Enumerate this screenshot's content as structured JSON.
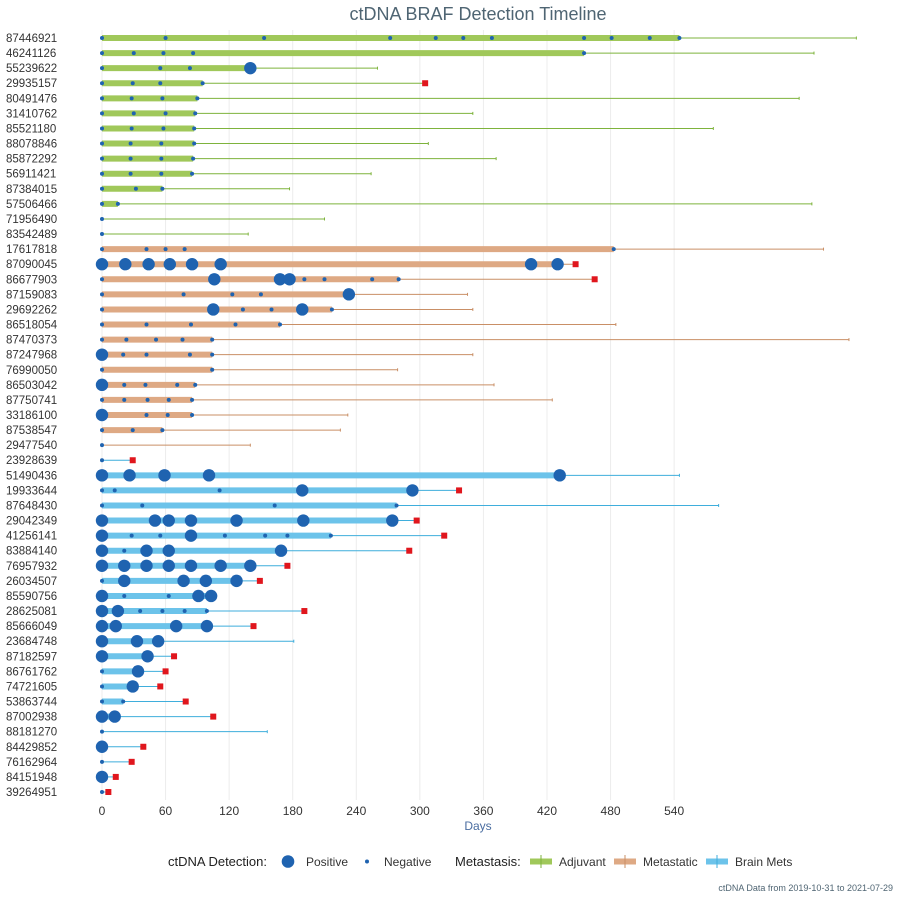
{
  "chart_data": {
    "type": "timeline",
    "title": "ctDNA BRAF Detection Timeline",
    "xlabel": "Days",
    "xlim": [
      -5,
      720
    ],
    "xticks": [
      0,
      60,
      120,
      180,
      240,
      300,
      360,
      420,
      480,
      540
    ],
    "caption": "ctDNA Data from 2019-10-31 to 2021-07-29",
    "legend": {
      "placement": "bottom",
      "detection_title": "ctDNA Detection:",
      "positive_label": "Positive",
      "negative_label": "Negative",
      "metastasis_title": "Metastasis:",
      "groups": [
        {
          "key": "adjuvant",
          "label": "Adjuvant",
          "color": "#a0c85a",
          "thin_color": "#7eb33c"
        },
        {
          "key": "metastatic",
          "label": "Metastatic",
          "color": "#dea984",
          "thin_color": "#c98f66"
        },
        {
          "key": "brain",
          "label": "Brain Mets",
          "color": "#6cc3ea",
          "thin_color": "#3faedc"
        }
      ]
    },
    "colors": {
      "positive": "#1f63b0",
      "negative": "#1f63b0",
      "event": "#e0161d",
      "title": "#4f6573"
    },
    "patients": [
      {
        "id": "87446921",
        "group": "adjuvant",
        "thick_end": 545,
        "thin_end": 712,
        "pos": [],
        "neg": [
          0,
          60,
          153,
          272,
          315,
          341,
          368,
          455,
          481,
          517,
          545
        ]
      },
      {
        "id": "46241126",
        "group": "adjuvant",
        "thick_end": 455,
        "thin_end": 672,
        "pos": [],
        "neg": [
          0,
          30,
          58,
          86,
          455
        ]
      },
      {
        "id": "55239622",
        "group": "adjuvant",
        "thick_end": 140,
        "thin_end": 260,
        "pos": [
          140
        ],
        "neg": [
          0,
          55,
          83
        ]
      },
      {
        "id": "29935157",
        "group": "adjuvant",
        "thick_end": 95,
        "thin_end": 305,
        "pos": [],
        "neg": [
          0,
          29,
          55,
          95
        ],
        "event": 305
      },
      {
        "id": "80491476",
        "group": "adjuvant",
        "thick_end": 90,
        "thin_end": 658,
        "pos": [],
        "neg": [
          0,
          28,
          57,
          90
        ]
      },
      {
        "id": "31410762",
        "group": "adjuvant",
        "thick_end": 88,
        "thin_end": 350,
        "pos": [],
        "neg": [
          0,
          30,
          60,
          88
        ]
      },
      {
        "id": "85521180",
        "group": "adjuvant",
        "thick_end": 87,
        "thin_end": 577,
        "pos": [],
        "neg": [
          0,
          28,
          58,
          87
        ]
      },
      {
        "id": "88078846",
        "group": "adjuvant",
        "thick_end": 87,
        "thin_end": 308,
        "pos": [],
        "neg": [
          0,
          27,
          56,
          87
        ]
      },
      {
        "id": "85872292",
        "group": "adjuvant",
        "thick_end": 86,
        "thin_end": 372,
        "pos": [],
        "neg": [
          0,
          27,
          56,
          86
        ]
      },
      {
        "id": "56911421",
        "group": "adjuvant",
        "thick_end": 85,
        "thin_end": 254,
        "pos": [],
        "neg": [
          0,
          27,
          56,
          85
        ]
      },
      {
        "id": "87384015",
        "group": "adjuvant",
        "thick_end": 57,
        "thin_end": 177,
        "pos": [],
        "neg": [
          0,
          32,
          57
        ]
      },
      {
        "id": "57506466",
        "group": "adjuvant",
        "thick_end": 15,
        "thin_end": 670,
        "pos": [],
        "neg": [
          0,
          15
        ]
      },
      {
        "id": "71956490",
        "group": "adjuvant",
        "thick_end": 0,
        "thin_end": 210,
        "pos": [],
        "neg": [
          0
        ]
      },
      {
        "id": "83542489",
        "group": "adjuvant",
        "thick_end": 0,
        "thin_end": 138,
        "pos": [],
        "neg": [
          0
        ]
      },
      {
        "id": "17617818",
        "group": "metastatic",
        "thick_end": 483,
        "thin_end": 681,
        "pos": [],
        "neg": [
          0,
          42,
          60,
          78,
          483
        ]
      },
      {
        "id": "87090045",
        "group": "metastatic",
        "thick_end": 430,
        "thin_end": 447,
        "pos": [
          0,
          22,
          44,
          64,
          85,
          112,
          405,
          430
        ],
        "neg": [],
        "event": 447
      },
      {
        "id": "86677903",
        "group": "metastatic",
        "thick_end": 280,
        "thin_end": 465,
        "pos": [
          106,
          168,
          177
        ],
        "neg": [
          0,
          191,
          210,
          255,
          280
        ],
        "event": 465
      },
      {
        "id": "87159083",
        "group": "metastatic",
        "thick_end": 233,
        "thin_end": 345,
        "pos": [
          233
        ],
        "neg": [
          0,
          77,
          123,
          150
        ]
      },
      {
        "id": "29692262",
        "group": "metastatic",
        "thick_end": 217,
        "thin_end": 350,
        "pos": [
          105,
          189
        ],
        "neg": [
          0,
          133,
          160,
          217
        ]
      },
      {
        "id": "86518054",
        "group": "metastatic",
        "thick_end": 168,
        "thin_end": 485,
        "pos": [],
        "neg": [
          0,
          42,
          84,
          126,
          168
        ]
      },
      {
        "id": "87470373",
        "group": "metastatic",
        "thick_end": 104,
        "thin_end": 705,
        "pos": [],
        "neg": [
          0,
          23,
          51,
          76,
          104
        ]
      },
      {
        "id": "87247968",
        "group": "metastatic",
        "thick_end": 104,
        "thin_end": 350,
        "pos": [
          0
        ],
        "neg": [
          20,
          42,
          83,
          104
        ]
      },
      {
        "id": "76990050",
        "group": "metastatic",
        "thick_end": 104,
        "thin_end": 279,
        "pos": [],
        "neg": [
          0,
          104
        ]
      },
      {
        "id": "86503042",
        "group": "metastatic",
        "thick_end": 88,
        "thin_end": 370,
        "pos": [
          0
        ],
        "neg": [
          21,
          41,
          71,
          88
        ]
      },
      {
        "id": "87750741",
        "group": "metastatic",
        "thick_end": 85,
        "thin_end": 425,
        "pos": [],
        "neg": [
          0,
          21,
          43,
          63,
          85
        ]
      },
      {
        "id": "33186100",
        "group": "metastatic",
        "thick_end": 85,
        "thin_end": 232,
        "pos": [
          0
        ],
        "neg": [
          42,
          62,
          85
        ]
      },
      {
        "id": "87538547",
        "group": "metastatic",
        "thick_end": 57,
        "thin_end": 225,
        "pos": [],
        "neg": [
          0,
          29,
          57
        ]
      },
      {
        "id": "29477540",
        "group": "metastatic",
        "thick_end": 0,
        "thin_end": 140,
        "pos": [],
        "neg": [
          0
        ]
      },
      {
        "id": "23928639",
        "group": "brain",
        "thick_end": 0,
        "thin_end": 29,
        "pos": [],
        "neg": [
          0
        ],
        "event": 29
      },
      {
        "id": "51490436",
        "group": "brain",
        "thick_end": 432,
        "thin_end": 545,
        "pos": [
          0,
          26,
          59,
          101,
          432
        ],
        "neg": []
      },
      {
        "id": "19933644",
        "group": "brain",
        "thick_end": 293,
        "thin_end": 337,
        "pos": [
          189,
          293
        ],
        "neg": [
          0,
          12,
          111
        ],
        "event": 337
      },
      {
        "id": "87648430",
        "group": "brain",
        "thick_end": 278,
        "thin_end": 582,
        "pos": [],
        "neg": [
          0,
          38,
          163,
          278
        ]
      },
      {
        "id": "29042349",
        "group": "brain",
        "thick_end": 278,
        "thin_end": 297,
        "pos": [
          0,
          50,
          63,
          84,
          127,
          190,
          274
        ],
        "neg": [],
        "event": 297
      },
      {
        "id": "41256141",
        "group": "brain",
        "thick_end": 216,
        "thin_end": 323,
        "pos": [
          0,
          84
        ],
        "neg": [
          28,
          55,
          116,
          154,
          175,
          216
        ],
        "event": 323
      },
      {
        "id": "83884140",
        "group": "brain",
        "thick_end": 169,
        "thin_end": 290,
        "pos": [
          0,
          42,
          63,
          169
        ],
        "neg": [
          21
        ],
        "event": 290
      },
      {
        "id": "76957932",
        "group": "brain",
        "thick_end": 140,
        "thin_end": 175,
        "pos": [
          0,
          21,
          42,
          63,
          84,
          112,
          140
        ],
        "neg": [],
        "event": 175
      },
      {
        "id": "26034507",
        "group": "brain",
        "thick_end": 127,
        "thin_end": 149,
        "pos": [
          21,
          77,
          98,
          127
        ],
        "neg": [
          0
        ],
        "event": 149
      },
      {
        "id": "85590756",
        "group": "brain",
        "thick_end": 105,
        "thin_end": 105,
        "pos": [
          0,
          91,
          103
        ],
        "neg": [
          21,
          63
        ],
        "event": 105
      },
      {
        "id": "28625081",
        "group": "brain",
        "thick_end": 99,
        "thin_end": 191,
        "pos": [
          0,
          15
        ],
        "neg": [
          36,
          57,
          78,
          99
        ],
        "event": 191
      },
      {
        "id": "85666049",
        "group": "brain",
        "thick_end": 99,
        "thin_end": 143,
        "pos": [
          0,
          13,
          70,
          99
        ],
        "neg": [],
        "event": 143
      },
      {
        "id": "23684748",
        "group": "brain",
        "thick_end": 53,
        "thin_end": 181,
        "pos": [
          0,
          33,
          53
        ],
        "neg": []
      },
      {
        "id": "87182597",
        "group": "brain",
        "thick_end": 43,
        "thin_end": 68,
        "pos": [
          0,
          43
        ],
        "neg": [],
        "event": 68
      },
      {
        "id": "86761762",
        "group": "brain",
        "thick_end": 34,
        "thin_end": 60,
        "pos": [
          34
        ],
        "neg": [
          0
        ],
        "event": 60
      },
      {
        "id": "74721605",
        "group": "brain",
        "thick_end": 29,
        "thin_end": 55,
        "pos": [
          29
        ],
        "neg": [
          0
        ],
        "event": 55
      },
      {
        "id": "53863744",
        "group": "brain",
        "thick_end": 20,
        "thin_end": 79,
        "pos": [],
        "neg": [
          0,
          20
        ],
        "event": 79
      },
      {
        "id": "87002938",
        "group": "brain",
        "thick_end": 12,
        "thin_end": 105,
        "pos": [
          0,
          12
        ],
        "neg": [],
        "event": 105
      },
      {
        "id": "88181270",
        "group": "brain",
        "thick_end": 0,
        "thin_end": 156,
        "pos": [],
        "neg": [
          0
        ]
      },
      {
        "id": "84429852",
        "group": "brain",
        "thick_end": 0,
        "thin_end": 39,
        "pos": [
          0
        ],
        "neg": [],
        "event": 39
      },
      {
        "id": "76162964",
        "group": "brain",
        "thick_end": 0,
        "thin_end": 28,
        "pos": [],
        "neg": [
          0
        ],
        "event": 28
      },
      {
        "id": "84151948",
        "group": "brain",
        "thick_end": 0,
        "thin_end": 13,
        "pos": [
          0
        ],
        "neg": [],
        "event": 13
      },
      {
        "id": "39264951",
        "group": "brain",
        "thick_end": 0,
        "thin_end": 6,
        "pos": [],
        "neg": [
          0
        ],
        "event": 6
      }
    ]
  }
}
